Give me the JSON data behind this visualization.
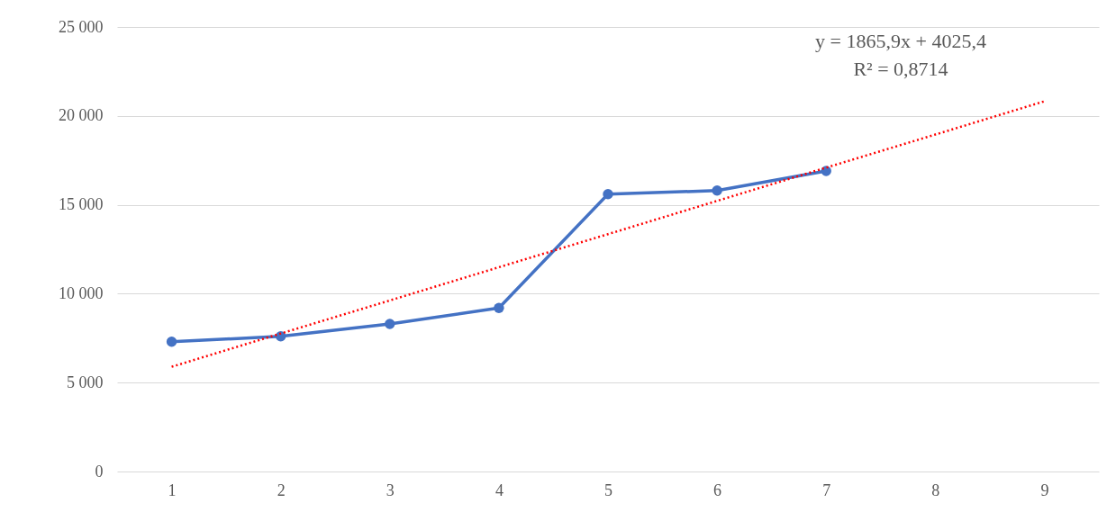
{
  "chart_data": {
    "type": "line",
    "categories": [
      "1",
      "2",
      "3",
      "4",
      "5",
      "6",
      "7",
      "8",
      "9"
    ],
    "series": [
      {
        "color": "#4472c4",
        "marker": "circle",
        "line_style": "solid",
        "values": [
          7300,
          7600,
          8300,
          9200,
          15600,
          15800,
          16900,
          null,
          null
        ]
      },
      {
        "type": "line",
        "color": "#ff0000",
        "marker": "none",
        "line_style": "dotted",
        "values": [
          5890,
          7760,
          9620,
          11490,
          13350,
          15220,
          17090,
          18950,
          20820
        ]
      }
    ],
    "ylim": [
      0,
      25000
    ],
    "yticks": [
      0,
      {
        "value": 5000,
        "label": "5 000"
      },
      {
        "value": 10000,
        "label": "10 000"
      },
      {
        "value": 15000,
        "label": "15 000"
      },
      {
        "value": 20000,
        "label": "20 000"
      },
      {
        "value": 25000,
        "label": "25 000"
      }
    ],
    "grid": "y",
    "annotations": [
      "y = 1865,9x + 4025,4",
      "R² = 0,8714"
    ]
  }
}
